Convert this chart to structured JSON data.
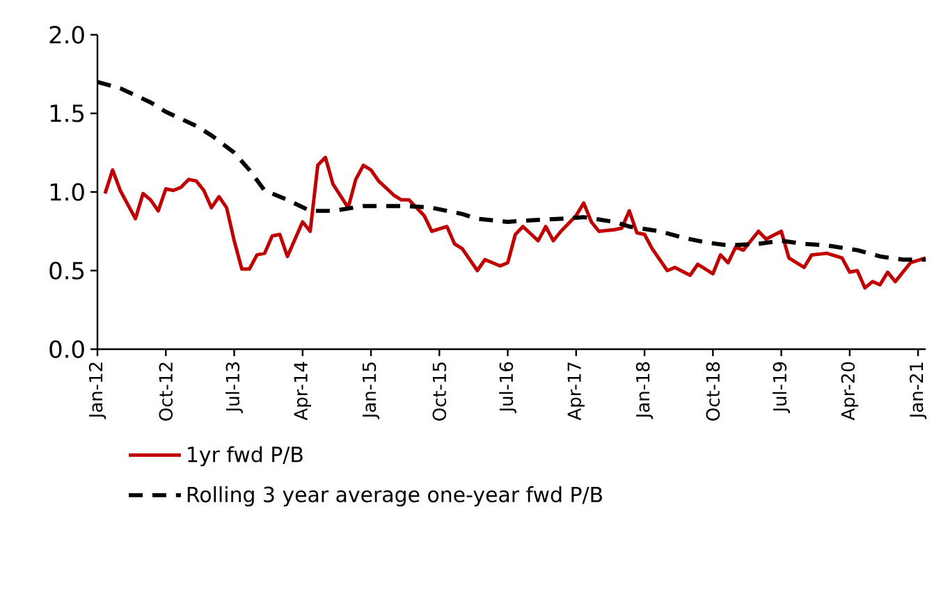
{
  "chart_data": {
    "type": "line",
    "xlim": [
      "2012-01",
      "2021-02"
    ],
    "ylim": [
      0,
      2
    ],
    "xticks": [
      {
        "value": "2012-01",
        "label": "Jan-12"
      },
      {
        "value": "2012-10",
        "label": "Oct-12"
      },
      {
        "value": "2013-07",
        "label": "Jul-13"
      },
      {
        "value": "2014-04",
        "label": "Apr-14"
      },
      {
        "value": "2015-01",
        "label": "Jan-15"
      },
      {
        "value": "2015-10",
        "label": "Oct-15"
      },
      {
        "value": "2016-07",
        "label": "Jul-16"
      },
      {
        "value": "2017-04",
        "label": "Apr-17"
      },
      {
        "value": "2018-01",
        "label": "Jan-18"
      },
      {
        "value": "2018-10",
        "label": "Oct-18"
      },
      {
        "value": "2019-07",
        "label": "Jul-19"
      },
      {
        "value": "2020-04",
        "label": "Apr-20"
      },
      {
        "value": "2021-01",
        "label": "Jan-21"
      }
    ],
    "yticks": [
      {
        "value": 0,
        "label": "0.0"
      },
      {
        "value": 0.5,
        "label": "0.5"
      },
      {
        "value": 1,
        "label": "1.0"
      },
      {
        "value": 1.5,
        "label": "1.5"
      },
      {
        "value": 2,
        "label": "2.0"
      }
    ],
    "grid": false,
    "legend": "bottom left",
    "marker": "none",
    "series": [
      {
        "name": "1yr fwd P/B",
        "color": "#c00000",
        "line_style": "solid",
        "x": [
          "2012-02",
          "2012-03",
          "2012-04",
          "2012-06",
          "2012-07",
          "2012-08",
          "2012-09",
          "2012-10",
          "2012-11",
          "2012-12",
          "2013-01",
          "2013-02",
          "2013-03",
          "2013-04",
          "2013-05",
          "2013-06",
          "2013-07",
          "2013-08",
          "2013-09",
          "2013-10",
          "2013-11",
          "2013-12",
          "2014-01",
          "2014-02",
          "2014-04",
          "2014-05",
          "2014-06",
          "2014-07",
          "2014-08",
          "2014-10",
          "2014-11",
          "2014-12",
          "2015-01",
          "2015-02",
          "2015-04",
          "2015-05",
          "2015-06",
          "2015-08",
          "2015-09",
          "2015-11",
          "2015-12",
          "2016-01",
          "2016-03",
          "2016-04",
          "2016-06",
          "2016-07",
          "2016-08",
          "2016-09",
          "2016-11",
          "2016-12",
          "2017-01",
          "2017-02",
          "2017-04",
          "2017-05",
          "2017-06",
          "2017-07",
          "2017-09",
          "2017-10",
          "2017-11",
          "2017-12",
          "2018-01",
          "2018-02",
          "2018-04",
          "2018-05",
          "2018-07",
          "2018-08",
          "2018-10",
          "2018-11",
          "2018-12",
          "2019-01",
          "2019-02",
          "2019-04",
          "2019-05",
          "2019-07",
          "2019-08",
          "2019-10",
          "2019-11",
          "2020-01",
          "2020-03",
          "2020-04",
          "2020-05",
          "2020-06",
          "2020-07",
          "2020-08",
          "2020-09",
          "2020-10",
          "2020-12",
          "2021-02"
        ],
        "values": [
          0.99,
          1.14,
          1.01,
          0.83,
          0.99,
          0.95,
          0.88,
          1.02,
          1.01,
          1.03,
          1.08,
          1.07,
          1.01,
          0.9,
          0.97,
          0.9,
          0.69,
          0.51,
          0.51,
          0.6,
          0.61,
          0.72,
          0.73,
          0.59,
          0.81,
          0.75,
          1.17,
          1.22,
          1.05,
          0.9,
          1.08,
          1.17,
          1.14,
          1.07,
          0.98,
          0.95,
          0.95,
          0.85,
          0.75,
          0.78,
          0.67,
          0.64,
          0.5,
          0.57,
          0.53,
          0.55,
          0.73,
          0.78,
          0.69,
          0.78,
          0.69,
          0.75,
          0.85,
          0.93,
          0.81,
          0.75,
          0.76,
          0.77,
          0.88,
          0.74,
          0.73,
          0.64,
          0.5,
          0.52,
          0.47,
          0.54,
          0.48,
          0.6,
          0.55,
          0.65,
          0.63,
          0.75,
          0.7,
          0.75,
          0.58,
          0.52,
          0.6,
          0.61,
          0.58,
          0.49,
          0.5,
          0.39,
          0.43,
          0.41,
          0.49,
          0.43,
          0.55,
          0.58
        ]
      },
      {
        "name": "Rolling 3 year average one-year fwd P/B",
        "color": "#000000",
        "line_style": "dashed",
        "x": [
          "2012-01",
          "2012-04",
          "2012-08",
          "2012-10",
          "2013-02",
          "2013-04",
          "2013-07",
          "2013-09",
          "2013-11",
          "2014-02",
          "2014-05",
          "2014-08",
          "2014-12",
          "2015-02",
          "2015-06",
          "2015-09",
          "2016-01",
          "2016-03",
          "2016-07",
          "2016-10",
          "2017-02",
          "2017-05",
          "2017-09",
          "2017-11",
          "2018-03",
          "2018-06",
          "2018-09",
          "2018-12",
          "2019-04",
          "2019-07",
          "2019-10",
          "2020-01",
          "2020-05",
          "2020-08",
          "2020-11",
          "2021-02"
        ],
        "values": [
          1.7,
          1.66,
          1.57,
          1.51,
          1.42,
          1.36,
          1.25,
          1.14,
          1.01,
          0.95,
          0.88,
          0.88,
          0.91,
          0.91,
          0.91,
          0.9,
          0.86,
          0.83,
          0.81,
          0.82,
          0.83,
          0.84,
          0.81,
          0.78,
          0.75,
          0.71,
          0.68,
          0.66,
          0.67,
          0.69,
          0.67,
          0.66,
          0.63,
          0.59,
          0.57,
          0.57
        ]
      }
    ]
  }
}
